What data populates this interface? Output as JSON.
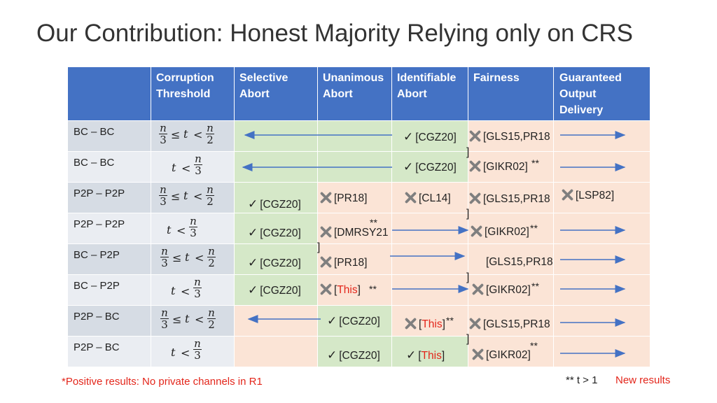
{
  "title": "Our Contribution: Honest Majority Relying only on CRS",
  "colors": {
    "header": "#4472c4",
    "green": "#d5e8c8",
    "peach": "#fbe4d6",
    "red": "#e3261b",
    "arrow": "#4472c4"
  },
  "headers": {
    "threshold": [
      "Corruption",
      "Threshold"
    ],
    "selective": [
      "Selective",
      "Abort"
    ],
    "unanimous": [
      "Unanimous",
      "Abort"
    ],
    "identifiable": [
      "Identifiable",
      "Abort"
    ],
    "fairness": [
      "Fairness"
    ],
    "god": [
      "Guaranteed",
      "Output",
      "Delivery"
    ]
  },
  "rows": [
    {
      "label": "BC – BC",
      "threshold": "n/3 ≤ t < n/2"
    },
    {
      "label": "BC – BC",
      "threshold": "t < n/3"
    },
    {
      "label": "P2P – P2P",
      "threshold": "n/3 ≤ t < n/2"
    },
    {
      "label": "P2P – P2P",
      "threshold": "t < n/3"
    },
    {
      "label": "BC – P2P",
      "threshold": "n/3 ≤ t < n/2"
    },
    {
      "label": "BC – P2P",
      "threshold": "t < n/3"
    },
    {
      "label": "P2P – BC",
      "threshold": "n/3 ≤ t < n/2"
    },
    {
      "label": "P2P – BC",
      "threshold": "t < n/3"
    }
  ],
  "math": {
    "n": "n",
    "three": "3",
    "two": "2",
    "t": "t",
    "leq": "≤",
    "lt": "<"
  },
  "symbols": {
    "check": "✓",
    "stars": "**",
    "bracket": "]"
  },
  "refs": {
    "cgz20": "[CGZ20]",
    "gls15": "[GLS15,PR18",
    "gikr02": "[GIKR02]",
    "pr18": "[PR18]",
    "cl14": "[CL14]",
    "lsp82": "[LSP82]",
    "dmrsy21": "[DMRSY21",
    "this_open": "[",
    "this_word": "This",
    "this_close": "]",
    "gikr02_open": "[GIKR02",
    "gikr02_close": "]"
  },
  "footer": {
    "note": "*Positive results: No private channels in R1",
    "stars_legend": "**  t > 1",
    "new_results": "New results"
  }
}
